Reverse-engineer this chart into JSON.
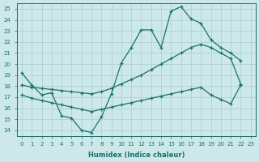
{
  "xlabel": "Humidex (Indice chaleur)",
  "background_color": "#cce8e8",
  "grid_color": "#aacece",
  "line_color": "#1a7070",
  "xlim": [
    -0.5,
    23.5
  ],
  "ylim": [
    13.5,
    25.5
  ],
  "xticks": [
    0,
    1,
    2,
    3,
    4,
    5,
    6,
    7,
    8,
    9,
    10,
    11,
    12,
    13,
    14,
    15,
    16,
    17,
    18,
    19,
    20,
    21,
    22,
    23
  ],
  "yticks": [
    14,
    15,
    16,
    17,
    18,
    19,
    20,
    21,
    22,
    23,
    24,
    25
  ],
  "line1_x": [
    0,
    1,
    2,
    3,
    4,
    5,
    6,
    7,
    8,
    9,
    10,
    11,
    12,
    13,
    14,
    15,
    16,
    17,
    18,
    19,
    20,
    21,
    22
  ],
  "line1_y": [
    19.2,
    18.1,
    17.2,
    17.4,
    15.3,
    15.1,
    14.0,
    13.8,
    15.2,
    17.3,
    20.1,
    21.5,
    23.1,
    23.1,
    21.5,
    24.8,
    25.2,
    24.1,
    23.7,
    22.2,
    21.5,
    21.0,
    20.3
  ],
  "line2_x": [
    0,
    1,
    2,
    3,
    4,
    5,
    6,
    7,
    8,
    9,
    10,
    11,
    12,
    13,
    14,
    15,
    16,
    17,
    18,
    19,
    20,
    21,
    22
  ],
  "line2_y": [
    18.1,
    17.9,
    17.8,
    17.7,
    17.6,
    17.5,
    17.4,
    17.3,
    17.5,
    17.8,
    18.2,
    18.6,
    19.0,
    19.5,
    20.0,
    20.5,
    21.0,
    21.5,
    21.8,
    21.5,
    21.0,
    20.5,
    18.2
  ],
  "line3_x": [
    0,
    1,
    2,
    3,
    4,
    5,
    6,
    7,
    8,
    9,
    10,
    11,
    12,
    13,
    14,
    15,
    16,
    17,
    18,
    19,
    20,
    21,
    22
  ],
  "line3_y": [
    17.2,
    16.9,
    16.7,
    16.5,
    16.3,
    16.1,
    15.9,
    15.7,
    15.9,
    16.1,
    16.3,
    16.5,
    16.7,
    16.9,
    17.1,
    17.3,
    17.5,
    17.7,
    17.9,
    17.2,
    16.8,
    16.4,
    18.1
  ]
}
